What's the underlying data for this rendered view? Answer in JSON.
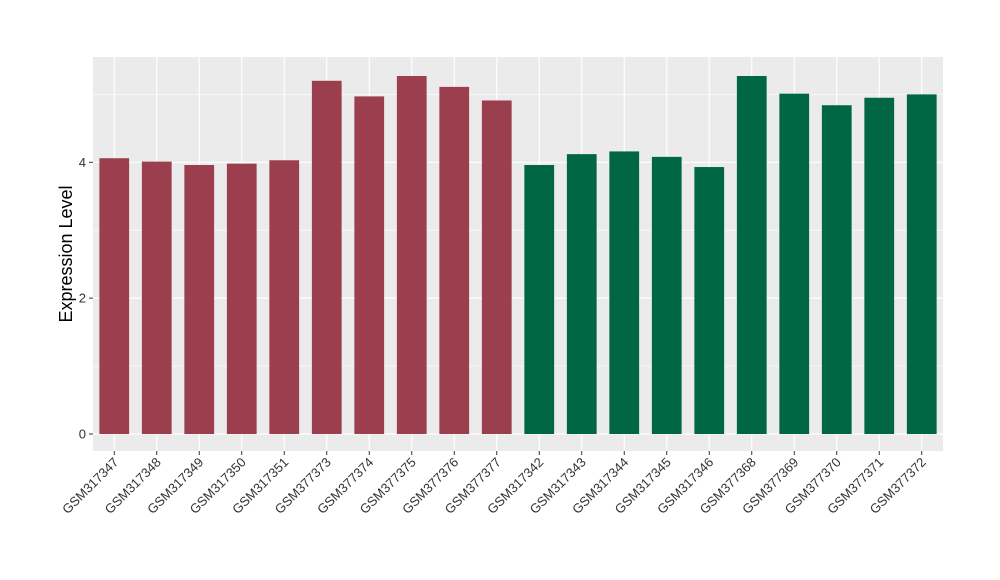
{
  "chart_data": {
    "type": "bar",
    "title": "",
    "xlabel": "",
    "ylabel": "Expression Level",
    "ylim": [
      -0.25,
      5.55
    ],
    "yticks": [
      0,
      2,
      4
    ],
    "grid": true,
    "legend": "none",
    "colors": {
      "group1": "#9b3f4e",
      "group2": "#006644",
      "panel": "#ebebeb",
      "gridline": "#ffffff"
    },
    "categories": [
      "GSM317347",
      "GSM317348",
      "GSM317349",
      "GSM317350",
      "GSM317351",
      "GSM377373",
      "GSM377374",
      "GSM377375",
      "GSM377376",
      "GSM377377",
      "GSM317342",
      "GSM317343",
      "GSM317344",
      "GSM317345",
      "GSM317346",
      "GSM377368",
      "GSM377369",
      "GSM377370",
      "GSM377371",
      "GSM377372"
    ],
    "values": [
      4.06,
      4.01,
      3.96,
      3.98,
      4.03,
      5.2,
      4.97,
      5.27,
      5.11,
      4.91,
      3.96,
      4.12,
      4.16,
      4.08,
      3.93,
      5.27,
      5.01,
      4.84,
      4.95,
      5.0
    ],
    "bar_groups": [
      "group1",
      "group1",
      "group1",
      "group1",
      "group1",
      "group1",
      "group1",
      "group1",
      "group1",
      "group1",
      "group2",
      "group2",
      "group2",
      "group2",
      "group2",
      "group2",
      "group2",
      "group2",
      "group2",
      "group2"
    ]
  }
}
